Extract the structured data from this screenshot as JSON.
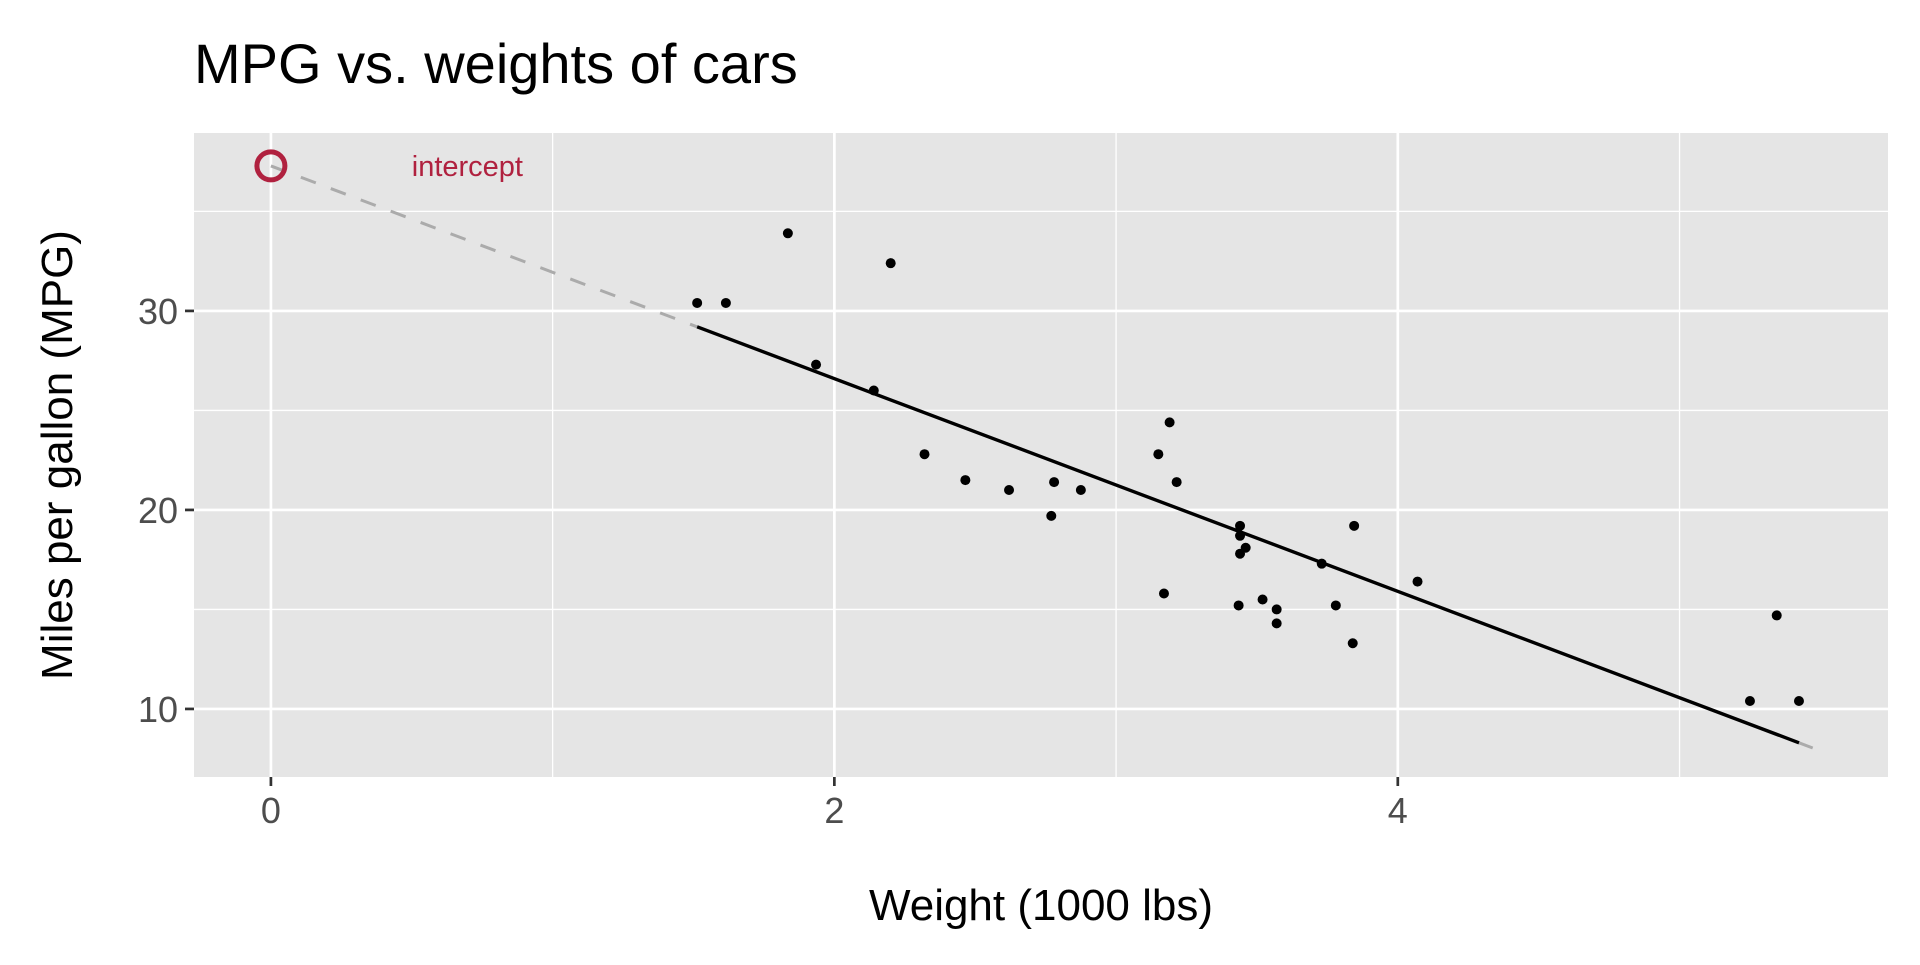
{
  "chart_data": {
    "type": "scatter",
    "title": "MPG vs. weights of cars",
    "xlabel": "Weight (1000 lbs)",
    "ylabel": "Miles per gallon (MPG)",
    "xlim": [
      -0.273,
      5.74
    ],
    "ylim": [
      6.58,
      38.94
    ],
    "x_ticks": [
      0,
      2,
      4
    ],
    "x_tick_labels": [
      "0",
      "2",
      "4"
    ],
    "x_minor": [
      1,
      3,
      5
    ],
    "y_ticks": [
      10,
      20,
      30
    ],
    "y_tick_labels": [
      "10",
      "20",
      "30"
    ],
    "y_minor": [
      15,
      25,
      35
    ],
    "grid": true,
    "points": {
      "x": [
        2.62,
        2.875,
        2.32,
        3.215,
        3.44,
        3.46,
        3.57,
        3.19,
        3.15,
        3.44,
        3.44,
        4.07,
        3.73,
        3.78,
        5.25,
        5.424,
        5.345,
        2.2,
        1.615,
        1.835,
        2.465,
        3.52,
        3.435,
        3.84,
        3.845,
        1.935,
        2.14,
        1.513,
        3.17,
        2.77,
        3.57,
        2.78
      ],
      "y": [
        21,
        21,
        22.8,
        21.4,
        18.7,
        18.1,
        14.3,
        24.4,
        22.8,
        19.2,
        17.8,
        16.4,
        17.3,
        15.2,
        10.4,
        10.4,
        14.7,
        32.4,
        30.4,
        33.9,
        21.5,
        15.5,
        15.2,
        13.3,
        19.2,
        27.3,
        26,
        30.4,
        15.8,
        19.7,
        15,
        21.4
      ]
    },
    "fit": {
      "intercept": 37.285,
      "slope": -5.344,
      "solid_range": [
        1.513,
        5.424
      ],
      "dashed_range": [
        0,
        5.5
      ]
    },
    "annotation": {
      "label": "intercept",
      "x": 0.5,
      "y": 37.285,
      "point_x": 0,
      "point_y": 37.285
    },
    "colors": {
      "panel": "#E5E5E5",
      "grid": "#FFFFFF",
      "points": "#000000",
      "fit": "#000000",
      "dashed": "#ABABAB",
      "accent": "#B0213F",
      "tick_text": "#4D4D4D"
    }
  }
}
